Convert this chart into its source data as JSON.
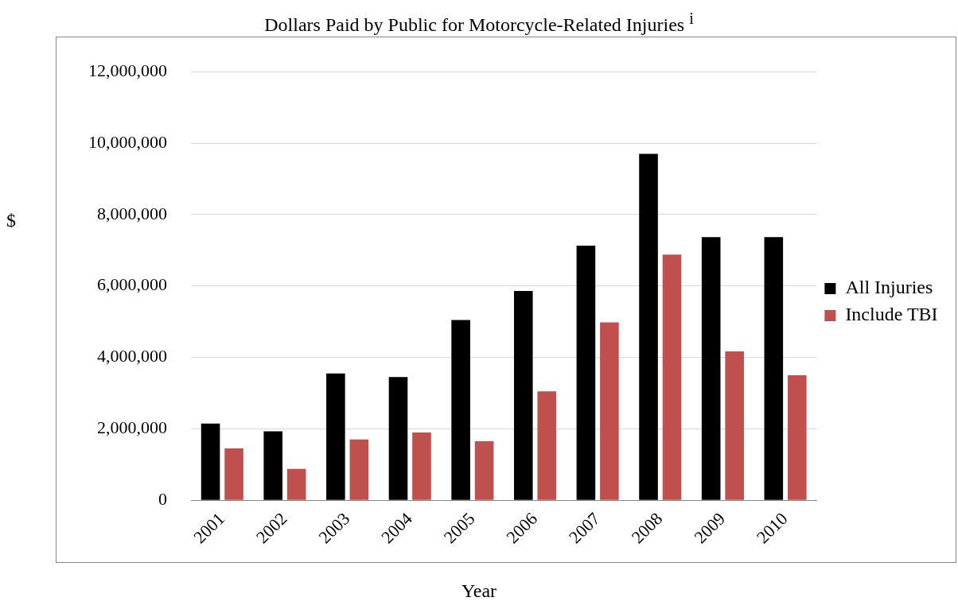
{
  "chart_data": {
    "type": "bar",
    "title": "Dollars Paid by Public for Motorcycle-Related Injuries $^{i}$",
    "xlabel": "Year",
    "ylabel": "$",
    "categories": [
      "2001",
      "2002",
      "2003",
      "2004",
      "2005",
      "2006",
      "2007",
      "2008",
      "2009",
      "2010"
    ],
    "series": [
      {
        "name": "All Injuries",
        "color": "#000000",
        "values": [
          2150000,
          1930000,
          3550000,
          3450000,
          5050000,
          5860000,
          7130000,
          9700000,
          7370000,
          7370000
        ]
      },
      {
        "name": "Include TBI",
        "color": "#c0504d",
        "values": [
          1450000,
          880000,
          1700000,
          1900000,
          1650000,
          3050000,
          4980000,
          6880000,
          4170000,
          3500000
        ]
      }
    ],
    "ylim": [
      0,
      12000000
    ],
    "yticks": [
      {
        "value": 0,
        "label": "0"
      },
      {
        "value": 2000000,
        "label": "2,000,000"
      },
      {
        "value": 4000000,
        "label": "4,000,000"
      },
      {
        "value": 6000000,
        "label": "6,000,000"
      },
      {
        "value": 8000000,
        "label": "8,000,000"
      },
      {
        "value": 10000000,
        "label": "10,000,000"
      },
      {
        "value": 12000000,
        "label": "12,000,000"
      }
    ],
    "grid": "y",
    "legend": "right"
  }
}
